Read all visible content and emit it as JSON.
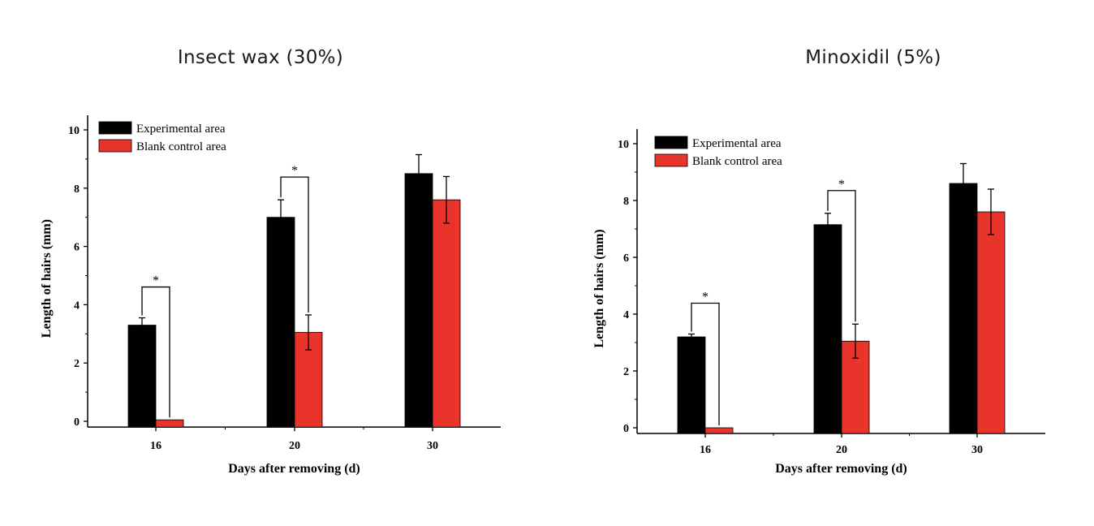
{
  "titles": {
    "left": "Insect wax (30%)",
    "right": "Minoxidil (5%)"
  },
  "colors": {
    "experimental": "#000000",
    "control": "#e8342a"
  },
  "chart_data": [
    {
      "type": "bar",
      "title": "Insect wax (30%)",
      "categories": [
        "16",
        "20",
        "30"
      ],
      "xlabel": "Days after removing (d)",
      "ylabel": "Length of hairs (mm)",
      "ylim": [
        -0.2,
        10.5
      ],
      "yticks": [
        "0",
        "2",
        "4",
        "6",
        "8",
        "10"
      ],
      "legend": "top-left",
      "grid": false,
      "series": [
        {
          "name": "Experimental area",
          "values": [
            3.3,
            7.0,
            8.5
          ],
          "errors": [
            0.25,
            0.6,
            0.65
          ]
        },
        {
          "name": "Blank control area",
          "values": [
            0.05,
            3.05,
            7.6
          ],
          "errors": [
            0.0,
            0.6,
            0.8
          ]
        }
      ],
      "annotations": [
        {
          "category": "16",
          "text": "*"
        },
        {
          "category": "20",
          "text": "*"
        }
      ]
    },
    {
      "type": "bar",
      "title": "Minoxidil (5%)",
      "categories": [
        "16",
        "20",
        "30"
      ],
      "xlabel": "Days after removing (d)",
      "ylabel": "Length of hairs (mm)",
      "ylim": [
        -0.2,
        10.5
      ],
      "yticks": [
        "0",
        "2",
        "4",
        "6",
        "8",
        "10"
      ],
      "legend": "top-left",
      "grid": false,
      "series": [
        {
          "name": "Experimental area",
          "values": [
            3.2,
            7.15,
            8.6
          ],
          "errors": [
            0.1,
            0.4,
            0.7
          ]
        },
        {
          "name": "Blank control area",
          "values": [
            0.0,
            3.05,
            7.6
          ],
          "errors": [
            0.0,
            0.6,
            0.8
          ]
        }
      ],
      "annotations": [
        {
          "category": "16",
          "text": "*"
        },
        {
          "category": "20",
          "text": "*"
        }
      ]
    }
  ]
}
